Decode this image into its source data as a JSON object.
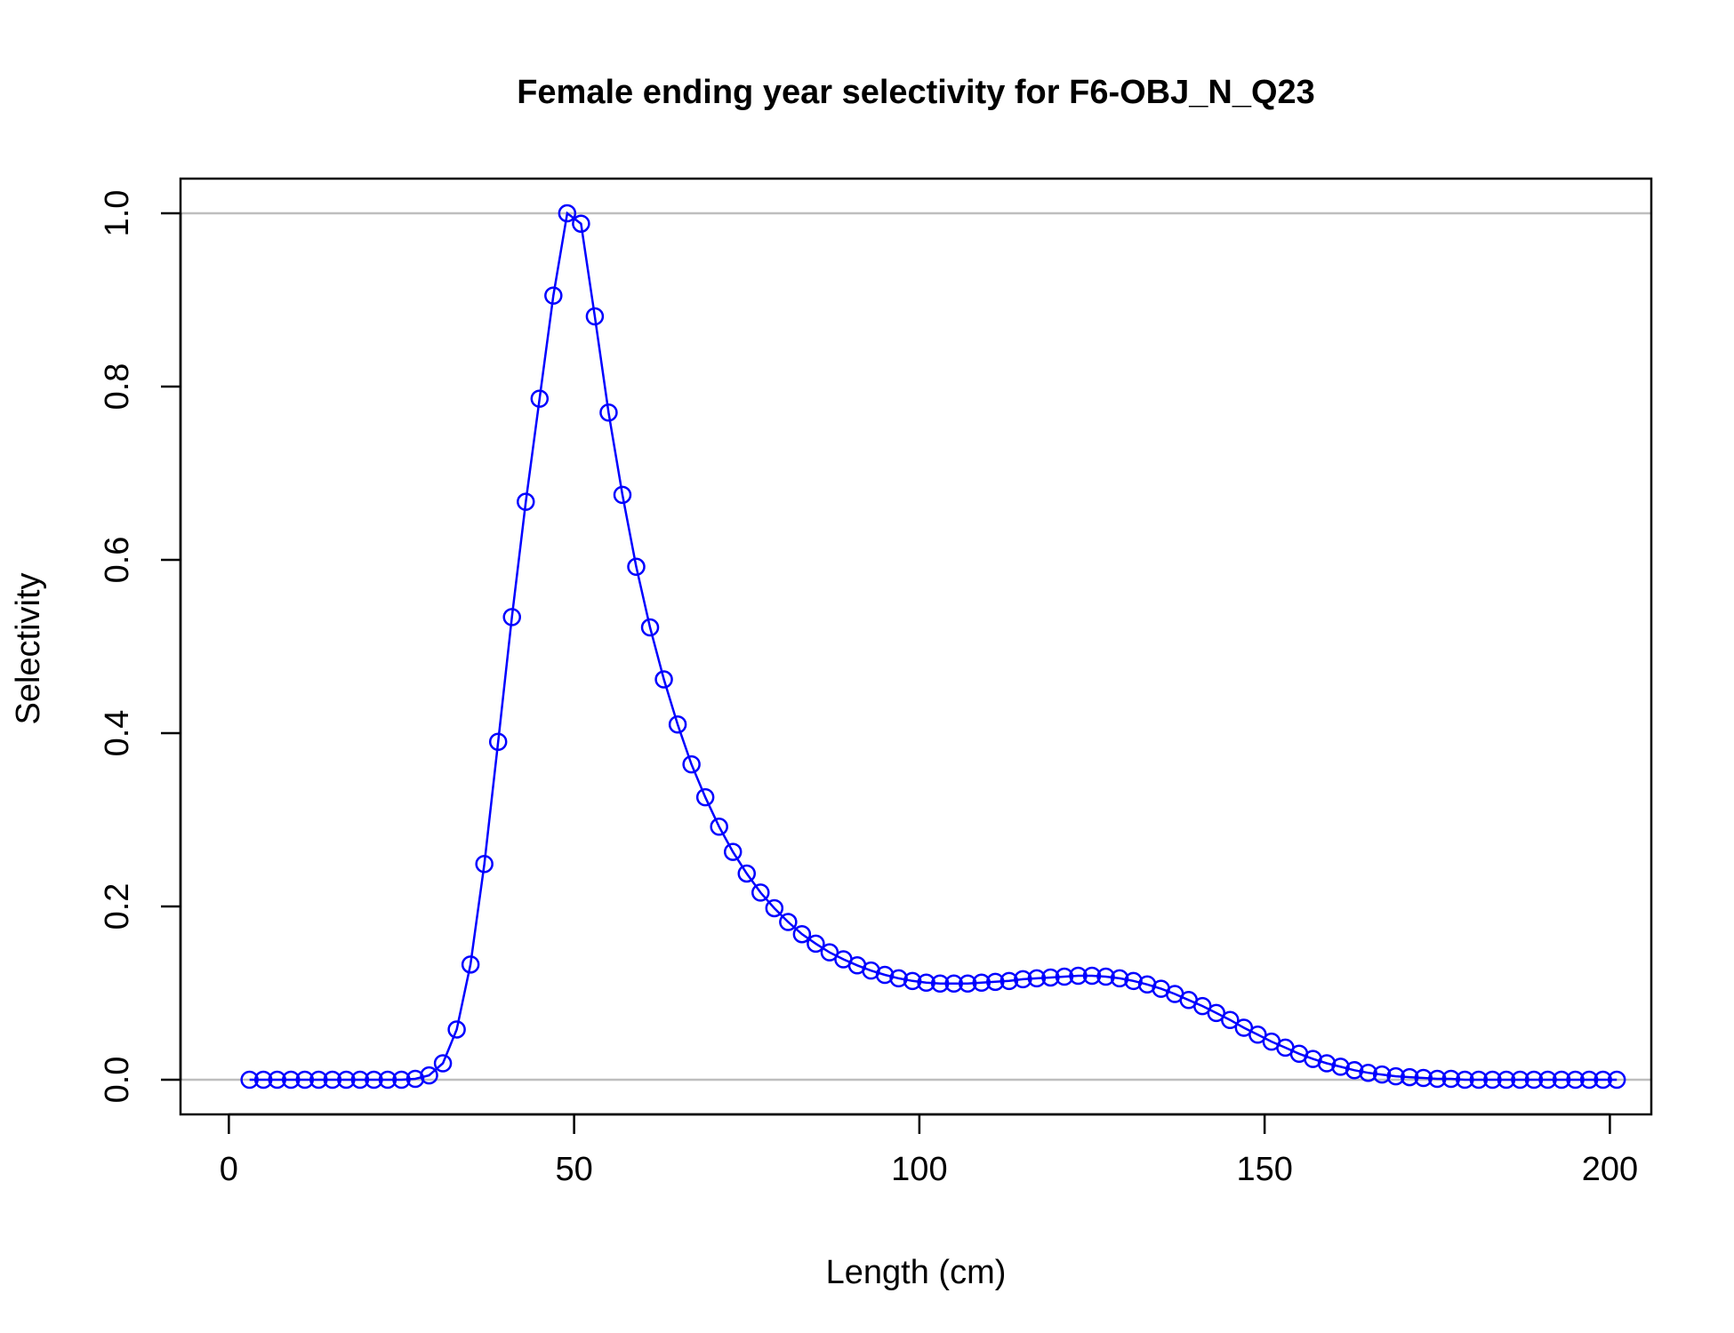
{
  "chart_data": {
    "type": "line",
    "title": "Female ending year selectivity for F6-OBJ_N_Q23",
    "xlabel": "Length (cm)",
    "ylabel": "Selectivity",
    "xlim": [
      -7,
      206
    ],
    "ylim": [
      -0.04,
      1.04
    ],
    "x_ticks": [
      0,
      50,
      100,
      150,
      200
    ],
    "y_ticks": [
      0.0,
      0.2,
      0.4,
      0.6,
      0.8,
      1.0
    ],
    "x_tick_labels": [
      "0",
      "50",
      "100",
      "150",
      "200"
    ],
    "y_tick_labels": [
      "0.0",
      "0.2",
      "0.4",
      "0.6",
      "0.8",
      "1.0"
    ],
    "reference_lines_y": [
      0,
      1
    ],
    "grid": false,
    "series_color": "#0000ff",
    "reference_line_color": "#bebebe",
    "marker": "open-circle",
    "series": [
      {
        "x": [
          3,
          5,
          7,
          9,
          11,
          13,
          15,
          17,
          19,
          21,
          23,
          25,
          27,
          29,
          31,
          33,
          35,
          37,
          39,
          41,
          43,
          45,
          47,
          49,
          51,
          53,
          55,
          57,
          59,
          61,
          63,
          65,
          67,
          69,
          71,
          73,
          75,
          77,
          79,
          81,
          83,
          85,
          87,
          89,
          91,
          93,
          95,
          97,
          99,
          101,
          103,
          105,
          107,
          109,
          111,
          113,
          115,
          117,
          119,
          121,
          123,
          125,
          127,
          129,
          131,
          133,
          135,
          137,
          139,
          141,
          143,
          145,
          147,
          149,
          151,
          153,
          155,
          157,
          159,
          161,
          163,
          165,
          167,
          169,
          171,
          173,
          175,
          177,
          179,
          181,
          183,
          185,
          187,
          189,
          191,
          193,
          195,
          197,
          199,
          201
        ],
        "y": [
          0,
          0,
          0,
          0,
          0,
          0,
          0,
          0,
          0,
          0,
          0,
          0,
          0.001,
          0.005,
          0.019,
          0.058,
          0.133,
          0.249,
          0.39,
          0.534,
          0.667,
          0.786,
          0.905,
          1.0,
          0.988,
          0.881,
          0.77,
          0.675,
          0.592,
          0.522,
          0.462,
          0.41,
          0.364,
          0.326,
          0.292,
          0.263,
          0.238,
          0.216,
          0.198,
          0.182,
          0.168,
          0.157,
          0.147,
          0.139,
          0.132,
          0.126,
          0.121,
          0.117,
          0.114,
          0.112,
          0.111,
          0.111,
          0.111,
          0.112,
          0.113,
          0.114,
          0.116,
          0.117,
          0.118,
          0.119,
          0.12,
          0.12,
          0.119,
          0.117,
          0.114,
          0.11,
          0.105,
          0.099,
          0.092,
          0.085,
          0.077,
          0.069,
          0.06,
          0.052,
          0.044,
          0.037,
          0.03,
          0.024,
          0.019,
          0.015,
          0.011,
          0.008,
          0.006,
          0.004,
          0.003,
          0.002,
          0.001,
          0.001,
          0,
          0,
          0,
          0,
          0,
          0,
          0,
          0,
          0,
          0,
          0,
          0
        ]
      }
    ]
  }
}
